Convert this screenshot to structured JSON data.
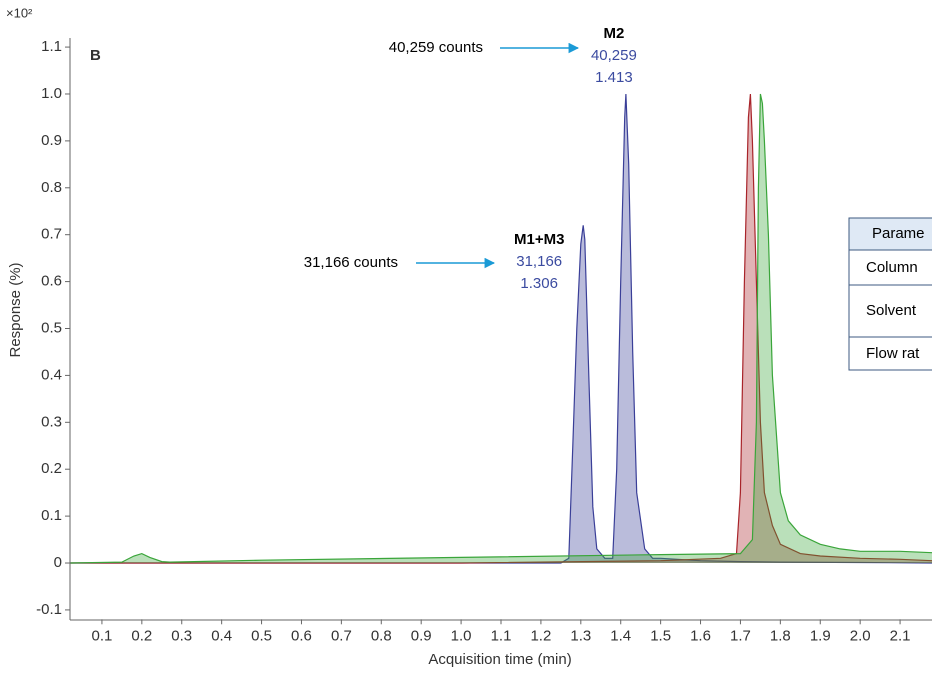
{
  "chart_data": {
    "type": "area-line",
    "panel_label": "B",
    "y_multiplier": "×10²",
    "x_label": "Acquisition time (min)",
    "y_label": "Response (%)",
    "xlim": [
      0.02,
      2.18
    ],
    "ylim": [
      -0.12,
      1.12
    ],
    "xticks": [
      0.1,
      0.2,
      0.3,
      0.4,
      0.5,
      0.6,
      0.7,
      0.8,
      0.9,
      {
        "value": 1,
        "label": "1.0"
      },
      1.1,
      1.2,
      1.3,
      1.4,
      1.5,
      1.6,
      1.7,
      1.8,
      1.9,
      {
        "value": 2,
        "label": "2.0"
      },
      2.1
    ],
    "yticks": [
      -0.1,
      0,
      0.1,
      0.2,
      0.3,
      0.4,
      0.5,
      0.6,
      0.7,
      0.8,
      0.9,
      {
        "value": 1,
        "label": "1.0"
      },
      1.1
    ],
    "series": [
      {
        "color": "#3a3f98",
        "x": [
          0.02,
          0.5,
          1.0,
          1.25,
          1.27,
          1.28,
          1.29,
          1.3,
          1.306,
          1.31,
          1.32,
          1.33,
          1.34,
          1.36,
          1.38,
          1.39,
          1.4,
          1.41,
          1.413,
          1.42,
          1.43,
          1.44,
          1.46,
          1.48,
          1.5,
          1.6,
          1.7,
          1.8,
          2.0,
          2.18
        ],
        "values": [
          0,
          0,
          0,
          0,
          0.01,
          0.25,
          0.5,
          0.68,
          0.72,
          0.69,
          0.4,
          0.12,
          0.03,
          0.01,
          0.01,
          0.2,
          0.6,
          0.95,
          1.0,
          0.85,
          0.45,
          0.15,
          0.03,
          0.01,
          0.01,
          0.005,
          0.003,
          0.002,
          0.001,
          0
        ]
      },
      {
        "color": "#a8242a",
        "x": [
          0.02,
          1.0,
          1.5,
          1.65,
          1.69,
          1.7,
          1.71,
          1.72,
          1.725,
          1.73,
          1.74,
          1.75,
          1.76,
          1.78,
          1.8,
          1.85,
          1.9,
          2.0,
          2.1,
          2.18
        ],
        "values": [
          0,
          0,
          0.005,
          0.01,
          0.02,
          0.15,
          0.6,
          0.95,
          1.0,
          0.9,
          0.6,
          0.3,
          0.15,
          0.08,
          0.04,
          0.02,
          0.015,
          0.01,
          0.008,
          0.005
        ]
      },
      {
        "color": "#3aa53a",
        "x": [
          0.02,
          0.15,
          0.18,
          0.2,
          0.22,
          0.25,
          0.27,
          0.5,
          1.0,
          1.5,
          1.7,
          1.73,
          1.74,
          1.745,
          1.75,
          1.755,
          1.76,
          1.77,
          1.78,
          1.8,
          1.82,
          1.85,
          1.9,
          1.95,
          2.0,
          2.1,
          2.18
        ],
        "values": [
          0,
          0.002,
          0.015,
          0.02,
          0.012,
          0.003,
          0.002,
          0.006,
          0.012,
          0.018,
          0.02,
          0.05,
          0.3,
          0.8,
          1.0,
          0.98,
          0.9,
          0.7,
          0.4,
          0.15,
          0.09,
          0.06,
          0.04,
          0.03,
          0.025,
          0.025,
          0.022
        ]
      }
    ],
    "peaks": [
      {
        "name": "M1+M3",
        "counts_label": "31,166",
        "rt": 1.306,
        "rt_label": "1.306",
        "arrow_label": "31,166 counts"
      },
      {
        "name": "M2",
        "counts_label": "40,259",
        "rt": 1.413,
        "rt_label": "1.413",
        "arrow_label": "40,259 counts"
      }
    ],
    "table": {
      "header": "Parame",
      "rows": [
        "Column",
        "Solvent",
        "Flow rat"
      ]
    }
  }
}
